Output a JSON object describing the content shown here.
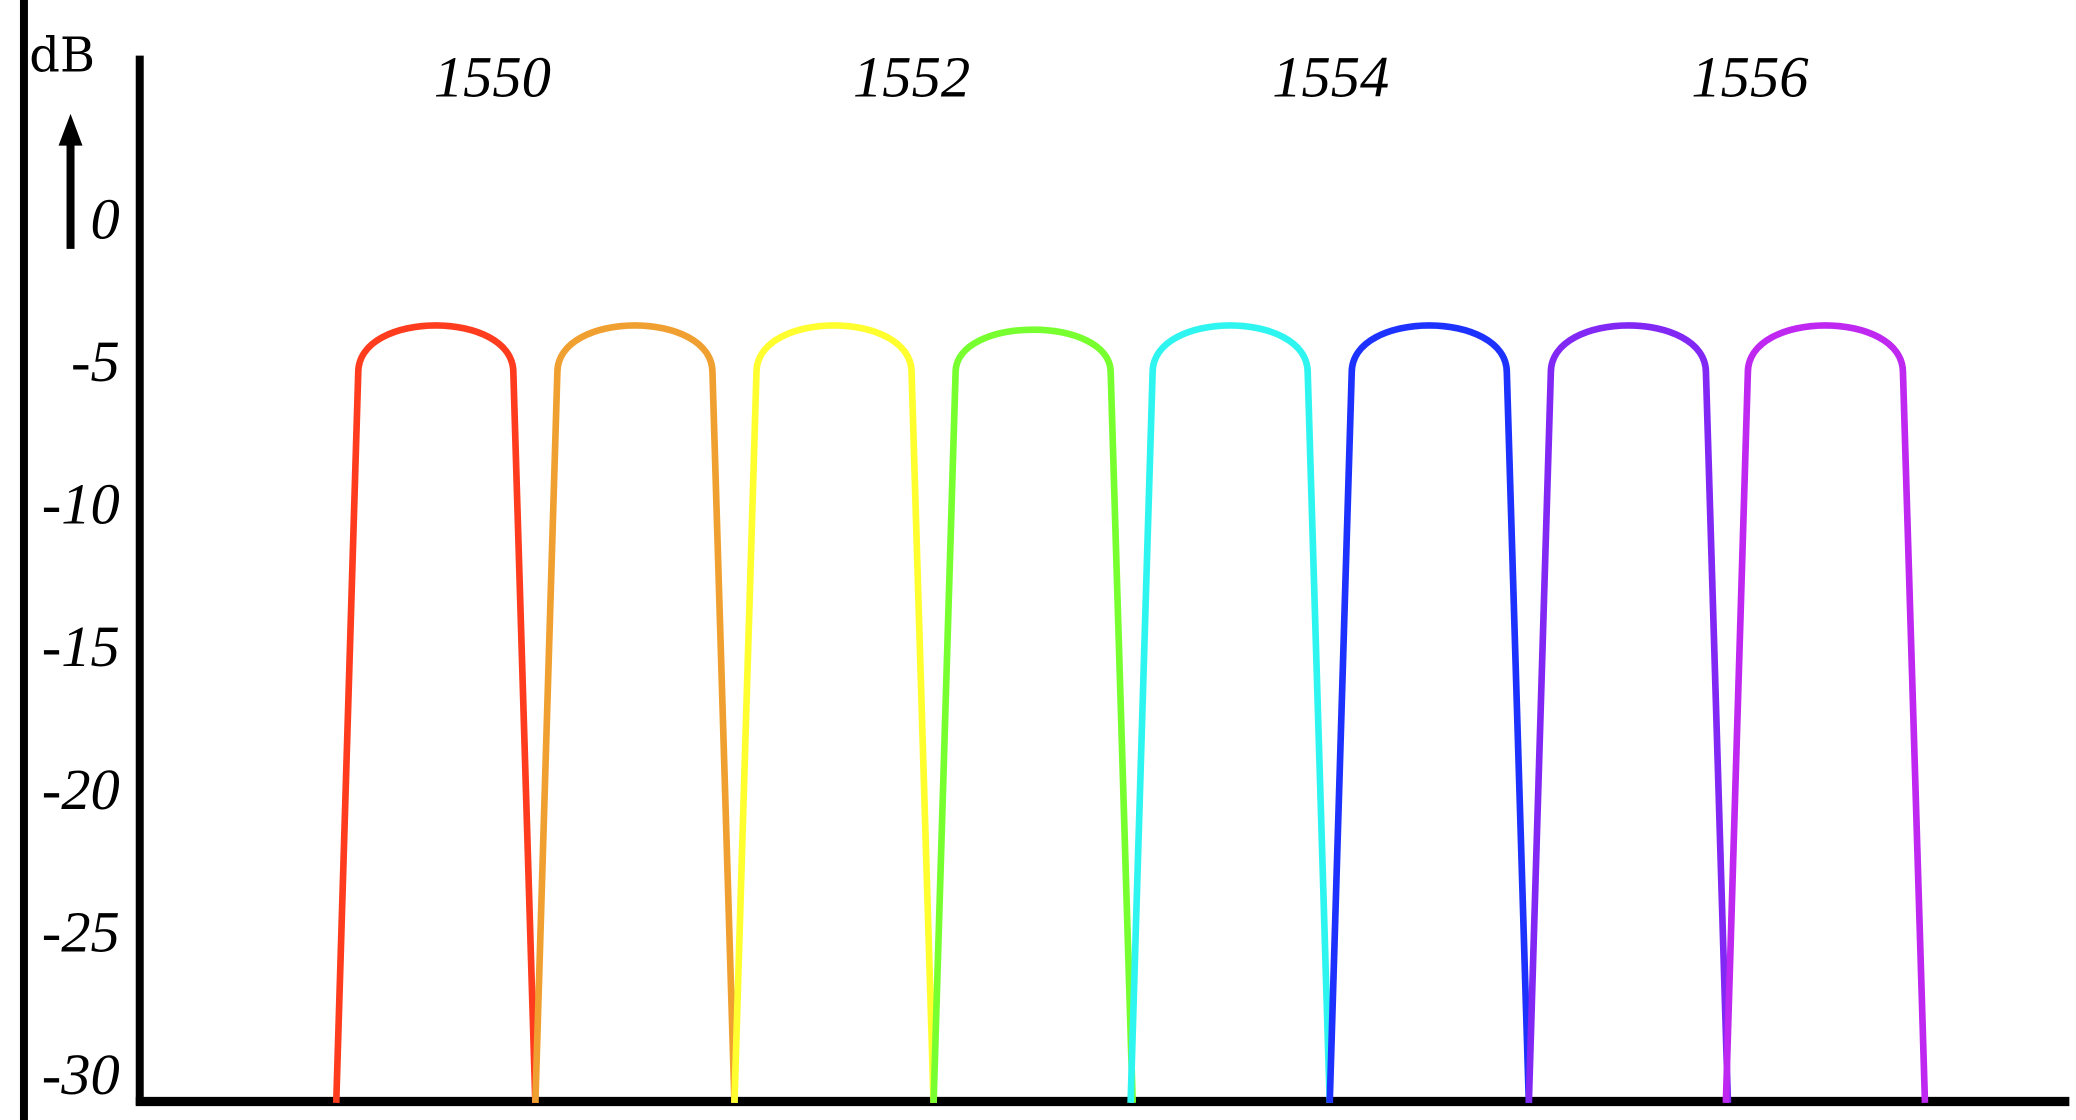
{
  "chart_data": {
    "type": "line",
    "title": "",
    "xlabel": "",
    "ylabel": "dB",
    "xlim": [
      1548.5,
      1557.5
    ],
    "ylim": [
      -31,
      5
    ],
    "x_ticks": [
      "1550",
      "1552",
      "1554",
      "1556"
    ],
    "x_tick_values": [
      1550,
      1552,
      1554,
      1556
    ],
    "x_ticks_position": "top",
    "y_ticks": [
      "0",
      "-5",
      "-10",
      "-15",
      "-20",
      "-25",
      "-30"
    ],
    "y_tick_values": [
      0,
      -5,
      -10,
      -15,
      -20,
      -25,
      -30
    ],
    "grid": false,
    "legend": "none",
    "series": [
      {
        "color": "#ff3c1e",
        "x": [
          1549.255,
          1549.36,
          1549.73,
          1550.1,
          1550.205
        ],
        "y": [
          -31,
          -5.4,
          -3.75,
          -5.4,
          -31
        ]
      },
      {
        "color": "#f0a030",
        "x": [
          1550.205,
          1550.31,
          1550.68,
          1551.05,
          1551.155
        ],
        "y": [
          -31,
          -5.4,
          -3.75,
          -5.4,
          -31
        ]
      },
      {
        "color": "#ffff30",
        "x": [
          1551.155,
          1551.26,
          1551.63,
          1552.0,
          1552.105
        ],
        "y": [
          -31,
          -5.4,
          -3.75,
          -5.4,
          -31
        ]
      },
      {
        "color": "#78ff30",
        "x": [
          1552.105,
          1552.21,
          1552.58,
          1552.95,
          1553.055
        ],
        "y": [
          -31,
          -5.4,
          -3.9,
          -5.4,
          -31
        ]
      },
      {
        "color": "#2ef5f0",
        "x": [
          1553.045,
          1553.15,
          1553.52,
          1553.89,
          1553.995
        ],
        "y": [
          -31,
          -5.4,
          -3.75,
          -5.4,
          -31
        ]
      },
      {
        "color": "#1e32ff",
        "x": [
          1553.995,
          1554.1,
          1554.47,
          1554.84,
          1554.945
        ],
        "y": [
          -31,
          -5.4,
          -3.75,
          -5.4,
          -31
        ]
      },
      {
        "color": "#8228f5",
        "x": [
          1554.945,
          1555.05,
          1555.42,
          1555.79,
          1555.895
        ],
        "y": [
          -31,
          -5.4,
          -3.75,
          -5.4,
          -31
        ]
      },
      {
        "color": "#be28f0",
        "x": [
          1555.885,
          1555.99,
          1556.36,
          1556.73,
          1556.835
        ],
        "y": [
          -31,
          -5.4,
          -3.75,
          -5.4,
          -31
        ]
      }
    ]
  }
}
